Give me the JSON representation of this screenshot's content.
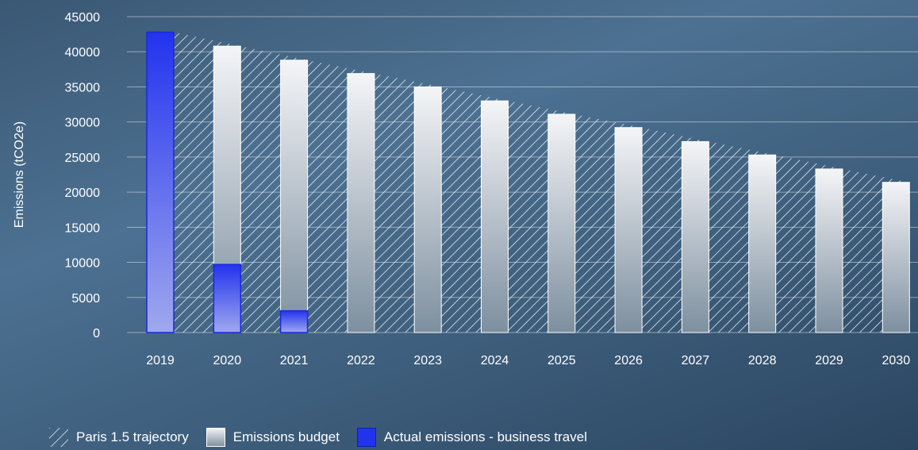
{
  "chart_data": {
    "type": "bar",
    "title": "",
    "xlabel": "",
    "ylabel": "Emissions (tCO2e)",
    "ylim": [
      0,
      45000
    ],
    "yticks": [
      0,
      5000,
      10000,
      15000,
      20000,
      25000,
      30000,
      35000,
      40000,
      45000
    ],
    "grid": true,
    "categories": [
      "2019",
      "2020",
      "2021",
      "2022",
      "2023",
      "2024",
      "2025",
      "2026",
      "2027",
      "2028",
      "2029",
      "2030"
    ],
    "series": [
      {
        "name": "Paris 1.5 trajectory",
        "type": "area",
        "values": [
          42800,
          40800,
          38800,
          36900,
          35000,
          33000,
          31100,
          29200,
          27200,
          25300,
          23300,
          21400
        ]
      },
      {
        "name": "Emissions budget",
        "type": "bar",
        "values": [
          42800,
          40800,
          38800,
          36900,
          35000,
          33000,
          31100,
          29200,
          27200,
          25300,
          23300,
          21400
        ]
      },
      {
        "name": "Actual emissions - business travel",
        "type": "bar",
        "values": [
          42800,
          9700,
          3100,
          null,
          null,
          null,
          null,
          null,
          null,
          null,
          null,
          null
        ]
      }
    ],
    "legend_position": "bottom-left",
    "colors": {
      "actual": "#2233ee",
      "actual_light": "#a0a8ee",
      "budget_top": "#f4f5f7",
      "budget_bottom": "#7d8f9f",
      "hatch": "#ffffff"
    }
  },
  "legend": [
    {
      "label": "Paris 1.5 trajectory",
      "swatch": "hatch"
    },
    {
      "label": "Emissions budget",
      "swatch": "gradient"
    },
    {
      "label": "Actual emissions - business travel",
      "swatch": "solid"
    }
  ]
}
